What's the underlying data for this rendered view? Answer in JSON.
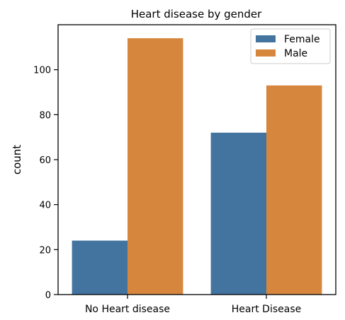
{
  "chart_data": {
    "type": "bar",
    "title": "Heart disease by gender",
    "xlabel": "",
    "ylabel": "count",
    "categories": [
      "No Heart disease",
      "Heart Disease"
    ],
    "series": [
      {
        "name": "Female",
        "color": "#4374a0",
        "values": [
          24,
          72
        ]
      },
      {
        "name": "Male",
        "color": "#d6863d",
        "values": [
          114,
          93
        ]
      }
    ],
    "ylim": [
      0,
      120
    ],
    "yticks": [
      0,
      20,
      40,
      60,
      80,
      100
    ],
    "grid": false,
    "legend_position": "top-right"
  }
}
